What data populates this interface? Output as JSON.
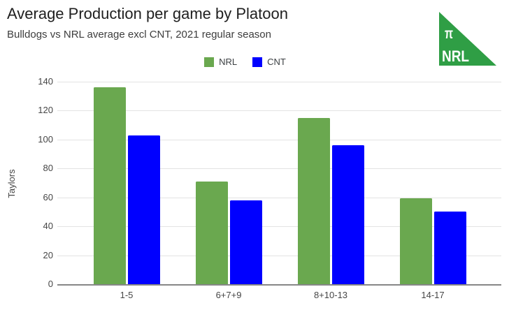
{
  "chart_data": {
    "type": "bar",
    "title": "Average Production per game by Platoon",
    "subtitle": "Bulldogs vs NRL average excl CNT, 2021 regular season",
    "categories": [
      "1-5",
      "6+7+9",
      "8+10-13",
      "14-17"
    ],
    "series": [
      {
        "name": "NRL",
        "color": "#6aa84f",
        "values": [
          136,
          71,
          115,
          59.5
        ]
      },
      {
        "name": "CNT",
        "color": "#0000ff",
        "values": [
          103,
          58,
          96,
          50
        ]
      }
    ],
    "xlabel": "",
    "ylabel": "Taylors",
    "ylim": [
      0,
      140
    ],
    "yticks": [
      0,
      20,
      40,
      60,
      80,
      100,
      120,
      140
    ],
    "grid": true,
    "legend_position": "top"
  },
  "logo": {
    "symbol": "π",
    "label": "NRL",
    "color": "#2f9e45",
    "text_color": "#ffffff"
  }
}
